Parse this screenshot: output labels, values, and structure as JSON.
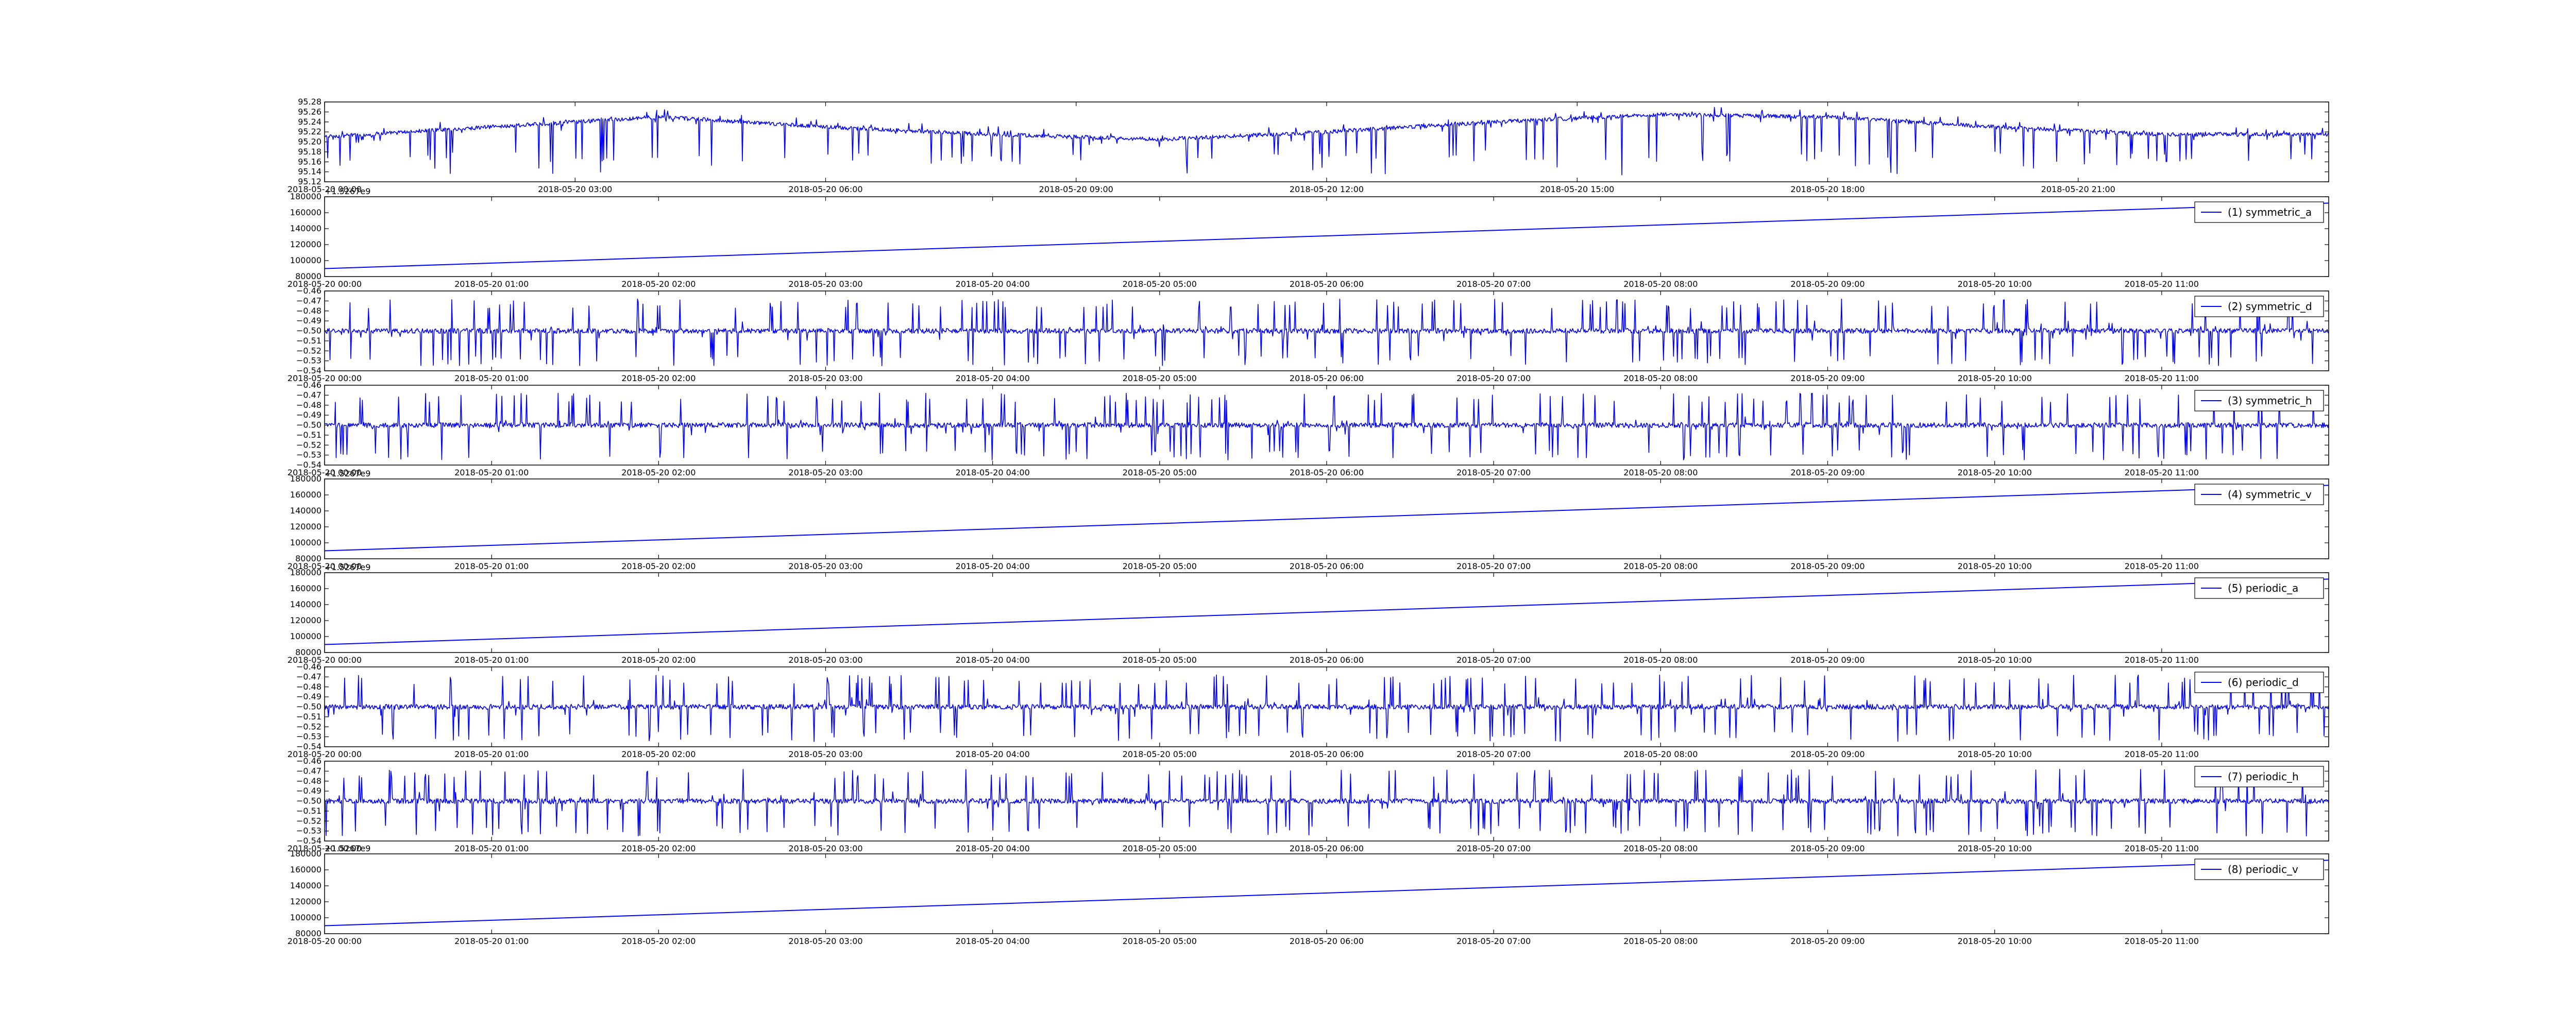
{
  "chart_data": [
    {
      "type": "line",
      "series": [
        {
          "name": "",
          "color": "#0000ff",
          "pattern": "noisy-spikes",
          "x": [
            "2018-05-20 00:00",
            "2018-05-20 02:00",
            "2018-05-20 04:00",
            "2018-05-20 06:00",
            "2018-05-20 08:00",
            "2018-05-20 10:00",
            "2018-05-20 12:00",
            "2018-05-20 14:00",
            "2018-05-20 16:00",
            "2018-05-20 18:00",
            "2018-05-20 20:00",
            "2018-05-20 22:00",
            "2018-05-21 00:00"
          ],
          "y": [
            95.21,
            95.23,
            95.25,
            95.23,
            95.215,
            95.205,
            95.22,
            95.24,
            95.255,
            95.25,
            95.23,
            95.215,
            95.215
          ],
          "spike_min": 95.16,
          "spike_abs_min": 95.13,
          "noise": 0.004
        }
      ],
      "ylim": [
        95.12,
        95.28
      ],
      "yticks": [
        "95.12",
        "95.14",
        "95.16",
        "95.18",
        "95.20",
        "95.22",
        "95.24",
        "95.26",
        "95.28"
      ],
      "xlim": [
        "2018-05-20 00:00",
        "2018-05-21 00:00"
      ],
      "xticks": [
        "2018-05-20 00:00",
        "2018-05-20 03:00",
        "2018-05-20 06:00",
        "2018-05-20 09:00",
        "2018-05-20 12:00",
        "2018-05-20 15:00",
        "2018-05-20 18:00",
        "2018-05-20 21:00"
      ],
      "offset_label": "",
      "legend": null
    },
    {
      "type": "line",
      "series": [
        {
          "name": "(1) symmetric_a",
          "color": "#0000ff",
          "pattern": "linear",
          "y": [
            90000,
            172000
          ]
        }
      ],
      "ylim": [
        80000,
        180000
      ],
      "yticks": [
        "80000",
        "100000",
        "120000",
        "140000",
        "160000",
        "180000"
      ],
      "xlim": [
        "2018-05-20 00:00",
        "2018-05-20 12:00"
      ],
      "xticks": [
        "2018-05-20 00:00",
        "2018-05-20 01:00",
        "2018-05-20 02:00",
        "2018-05-20 03:00",
        "2018-05-20 04:00",
        "2018-05-20 05:00",
        "2018-05-20 06:00",
        "2018-05-20 07:00",
        "2018-05-20 08:00",
        "2018-05-20 09:00",
        "2018-05-20 10:00",
        "2018-05-20 11:00"
      ],
      "offset_label": "+1.5267e9",
      "legend": "(1) symmetric_a"
    },
    {
      "type": "line",
      "series": [
        {
          "name": "(2) symmetric_d",
          "color": "#0000ff",
          "pattern": "noisy-spikes",
          "y": [
            -0.5
          ],
          "spike_min": -0.535,
          "spike_max": -0.468,
          "noise": 0.0025
        }
      ],
      "ylim": [
        -0.54,
        -0.46
      ],
      "yticks": [
        "−0.54",
        "−0.53",
        "−0.52",
        "−0.51",
        "−0.50",
        "−0.49",
        "−0.48",
        "−0.47",
        "−0.46"
      ],
      "xlim": [
        "2018-05-20 00:00",
        "2018-05-20 12:00"
      ],
      "xticks": [
        "2018-05-20 00:00",
        "2018-05-20 01:00",
        "2018-05-20 02:00",
        "2018-05-20 03:00",
        "2018-05-20 04:00",
        "2018-05-20 05:00",
        "2018-05-20 06:00",
        "2018-05-20 07:00",
        "2018-05-20 08:00",
        "2018-05-20 09:00",
        "2018-05-20 10:00",
        "2018-05-20 11:00"
      ],
      "offset_label": "",
      "legend": "(2) symmetric_d"
    },
    {
      "type": "line",
      "series": [
        {
          "name": "(3) symmetric_h",
          "color": "#0000ff",
          "pattern": "noisy-spikes",
          "y": [
            -0.5
          ],
          "spike_min": -0.535,
          "spike_max": -0.468,
          "noise": 0.0025
        }
      ],
      "ylim": [
        -0.54,
        -0.46
      ],
      "yticks": [
        "−0.54",
        "−0.53",
        "−0.52",
        "−0.51",
        "−0.50",
        "−0.49",
        "−0.48",
        "−0.47",
        "−0.46"
      ],
      "xlim": [
        "2018-05-20 00:00",
        "2018-05-20 12:00"
      ],
      "xticks": [
        "2018-05-20 00:00",
        "2018-05-20 01:00",
        "2018-05-20 02:00",
        "2018-05-20 03:00",
        "2018-05-20 04:00",
        "2018-05-20 05:00",
        "2018-05-20 06:00",
        "2018-05-20 07:00",
        "2018-05-20 08:00",
        "2018-05-20 09:00",
        "2018-05-20 10:00",
        "2018-05-20 11:00"
      ],
      "offset_label": "",
      "legend": "(3) symmetric_h"
    },
    {
      "type": "line",
      "series": [
        {
          "name": "(4) symmetric_v",
          "color": "#0000ff",
          "pattern": "linear",
          "y": [
            90000,
            172000
          ]
        }
      ],
      "ylim": [
        80000,
        180000
      ],
      "yticks": [
        "80000",
        "100000",
        "120000",
        "140000",
        "160000",
        "180000"
      ],
      "xlim": [
        "2018-05-20 00:00",
        "2018-05-20 12:00"
      ],
      "xticks": [
        "2018-05-20 00:00",
        "2018-05-20 01:00",
        "2018-05-20 02:00",
        "2018-05-20 03:00",
        "2018-05-20 04:00",
        "2018-05-20 05:00",
        "2018-05-20 06:00",
        "2018-05-20 07:00",
        "2018-05-20 08:00",
        "2018-05-20 09:00",
        "2018-05-20 10:00",
        "2018-05-20 11:00"
      ],
      "offset_label": "+1.5267e9",
      "legend": "(4) symmetric_v"
    },
    {
      "type": "line",
      "series": [
        {
          "name": "(5) periodic_a",
          "color": "#0000ff",
          "pattern": "linear",
          "y": [
            90000,
            172000
          ]
        }
      ],
      "ylim": [
        80000,
        180000
      ],
      "yticks": [
        "80000",
        "100000",
        "120000",
        "140000",
        "160000",
        "180000"
      ],
      "xlim": [
        "2018-05-20 00:00",
        "2018-05-20 12:00"
      ],
      "xticks": [
        "2018-05-20 00:00",
        "2018-05-20 01:00",
        "2018-05-20 02:00",
        "2018-05-20 03:00",
        "2018-05-20 04:00",
        "2018-05-20 05:00",
        "2018-05-20 06:00",
        "2018-05-20 07:00",
        "2018-05-20 08:00",
        "2018-05-20 09:00",
        "2018-05-20 10:00",
        "2018-05-20 11:00"
      ],
      "offset_label": "+1.5267e9",
      "legend": "(5) periodic_a"
    },
    {
      "type": "line",
      "series": [
        {
          "name": "(6) periodic_d",
          "color": "#0000ff",
          "pattern": "noisy-spikes",
          "y": [
            -0.5
          ],
          "spike_min": -0.535,
          "spike_max": -0.468,
          "noise": 0.0025
        }
      ],
      "ylim": [
        -0.54,
        -0.46
      ],
      "yticks": [
        "−0.54",
        "−0.53",
        "−0.52",
        "−0.51",
        "−0.50",
        "−0.49",
        "−0.48",
        "−0.47",
        "−0.46"
      ],
      "xlim": [
        "2018-05-20 00:00",
        "2018-05-20 12:00"
      ],
      "xticks": [
        "2018-05-20 00:00",
        "2018-05-20 01:00",
        "2018-05-20 02:00",
        "2018-05-20 03:00",
        "2018-05-20 04:00",
        "2018-05-20 05:00",
        "2018-05-20 06:00",
        "2018-05-20 07:00",
        "2018-05-20 08:00",
        "2018-05-20 09:00",
        "2018-05-20 10:00",
        "2018-05-20 11:00"
      ],
      "offset_label": "",
      "legend": "(6) periodic_d"
    },
    {
      "type": "line",
      "series": [
        {
          "name": "(7) periodic_h",
          "color": "#0000ff",
          "pattern": "noisy-spikes",
          "y": [
            -0.5
          ],
          "spike_min": -0.535,
          "spike_max": -0.468,
          "noise": 0.0025
        }
      ],
      "ylim": [
        -0.54,
        -0.46
      ],
      "yticks": [
        "−0.54",
        "−0.53",
        "−0.52",
        "−0.51",
        "−0.50",
        "−0.49",
        "−0.48",
        "−0.47",
        "−0.46"
      ],
      "xlim": [
        "2018-05-20 00:00",
        "2018-05-20 12:00"
      ],
      "xticks": [
        "2018-05-20 00:00",
        "2018-05-20 01:00",
        "2018-05-20 02:00",
        "2018-05-20 03:00",
        "2018-05-20 04:00",
        "2018-05-20 05:00",
        "2018-05-20 06:00",
        "2018-05-20 07:00",
        "2018-05-20 08:00",
        "2018-05-20 09:00",
        "2018-05-20 10:00",
        "2018-05-20 11:00"
      ],
      "offset_label": "",
      "legend": "(7) periodic_h"
    },
    {
      "type": "line",
      "series": [
        {
          "name": "(8) periodic_v",
          "color": "#0000ff",
          "pattern": "linear",
          "y": [
            90000,
            172000
          ]
        }
      ],
      "ylim": [
        80000,
        180000
      ],
      "yticks": [
        "80000",
        "100000",
        "120000",
        "140000",
        "160000",
        "180000"
      ],
      "xlim": [
        "2018-05-20 00:00",
        "2018-05-20 12:00"
      ],
      "xticks": [
        "2018-05-20 00:00",
        "2018-05-20 01:00",
        "2018-05-20 02:00",
        "2018-05-20 03:00",
        "2018-05-20 04:00",
        "2018-05-20 05:00",
        "2018-05-20 06:00",
        "2018-05-20 07:00",
        "2018-05-20 08:00",
        "2018-05-20 09:00",
        "2018-05-20 10:00",
        "2018-05-20 11:00"
      ],
      "offset_label": "+1.5267e9",
      "legend": "(8) periodic_v"
    }
  ]
}
